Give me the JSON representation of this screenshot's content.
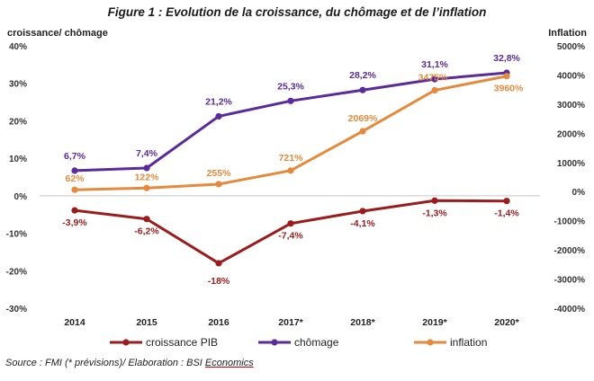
{
  "title": "Figure 1 : Evolution de la croissance, du chômage et de l’inflation",
  "source": {
    "prefix": "Source : FMI (* prévisions)/ Elaboration : BSI ",
    "underlined": "Economics"
  },
  "chart_data": {
    "type": "line",
    "categories": [
      "2014",
      "2015",
      "2016",
      "2017*",
      "2018*",
      "2019*",
      "2020*"
    ],
    "left_axis": {
      "label": "croissance/ chômage",
      "min": -30,
      "max": 40,
      "step": 10,
      "ticks": [
        "40%",
        "30%",
        "20%",
        "10%",
        "0%",
        "-10%",
        "-20%",
        "-30%"
      ]
    },
    "right_axis": {
      "label": "Inflation",
      "min": -4000,
      "max": 5000,
      "step": 1000,
      "ticks": [
        "5000%",
        "4000%",
        "3000%",
        "2000%",
        "1000%",
        "0%",
        "-1000%",
        "-2000%",
        "-3000%",
        "-4000%"
      ]
    },
    "grid": "zero-line only",
    "legend_position": "bottom",
    "series": [
      {
        "name": "croissance PIB",
        "axis": "left",
        "color": "#9b1c1c",
        "values": [
          -3.9,
          -6.2,
          -18,
          -7.4,
          -4.1,
          -1.3,
          -1.4
        ],
        "labels": [
          "-3,9%",
          "-6,2%",
          "-18%",
          "-7,4%",
          "-4,1%",
          "-1,3%",
          "-1,4%"
        ]
      },
      {
        "name": "chômage",
        "axis": "left",
        "color": "#5b2a9b",
        "values": [
          6.7,
          7.4,
          21.2,
          25.3,
          28.2,
          31.1,
          32.8
        ],
        "labels": [
          "6,7%",
          "7,4%",
          "21,2%",
          "25,3%",
          "28,2%",
          "31,1%",
          "32,8%"
        ]
      },
      {
        "name": "inflation",
        "axis": "right",
        "color": "#e58a3c",
        "values": [
          62,
          122,
          255,
          721,
          2069,
          3475,
          3960
        ],
        "labels": [
          "62%",
          "122%",
          "255%",
          "721%",
          "2069%",
          "3475%",
          "3960%"
        ]
      }
    ]
  }
}
